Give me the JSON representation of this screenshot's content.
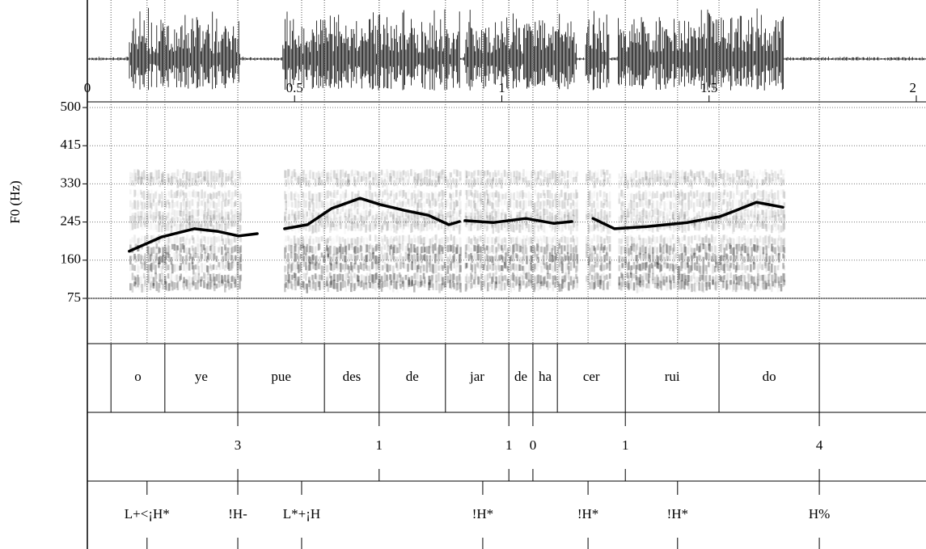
{
  "chart_data": {
    "type": "line",
    "ylabel": "F0 (Hz)",
    "x": [
      0.101,
      0.18,
      0.258,
      0.316,
      0.365,
      0.41,
      null,
      0.476,
      0.531,
      0.589,
      0.658,
      0.706,
      0.765,
      0.823,
      0.872,
      0.898,
      null,
      0.911,
      0.98,
      1.058,
      1.126,
      1.169,
      null,
      1.22,
      1.272,
      1.35,
      1.448,
      1.526,
      1.565,
      1.614,
      1.643,
      1.678
    ],
    "values": [
      180,
      212,
      230,
      224,
      214,
      219,
      null,
      230,
      239,
      275,
      298,
      284,
      271,
      260,
      239,
      246,
      null,
      248,
      244,
      253,
      242,
      246,
      null,
      253,
      230,
      235,
      244,
      257,
      271,
      289,
      284,
      278
    ],
    "color": "#000000",
    "xlim": [
      0,
      2
    ],
    "xticks": [
      0,
      0.5,
      1,
      1.5,
      2
    ],
    "ylim": [
      75,
      500
    ],
    "yticks": [
      75,
      160,
      245,
      330,
      415,
      500
    ],
    "grid": true
  },
  "tiers": [
    {
      "boundaries": [
        0.057,
        0.187,
        0.363,
        0.572,
        0.704,
        0.864,
        1.017,
        1.075,
        1.134,
        1.298,
        1.524,
        1.766
      ],
      "labels": [
        "o",
        "ye",
        "pue",
        "des",
        "de",
        "jar",
        "de",
        "ha",
        "cer",
        "rui",
        "do"
      ]
    },
    {
      "times": [
        0.363,
        0.704,
        1.017,
        1.075,
        1.298,
        1.766
      ],
      "labels": [
        "3",
        "1",
        "1",
        "0",
        "1",
        "4"
      ]
    },
    {
      "times": [
        0.144,
        0.363,
        0.517,
        0.954,
        1.208,
        1.424,
        1.766
      ],
      "labels": [
        "L+<¡H*",
        "!H-",
        "L*+¡H",
        "!H*",
        "!H*",
        "!H*",
        "H%"
      ]
    }
  ]
}
